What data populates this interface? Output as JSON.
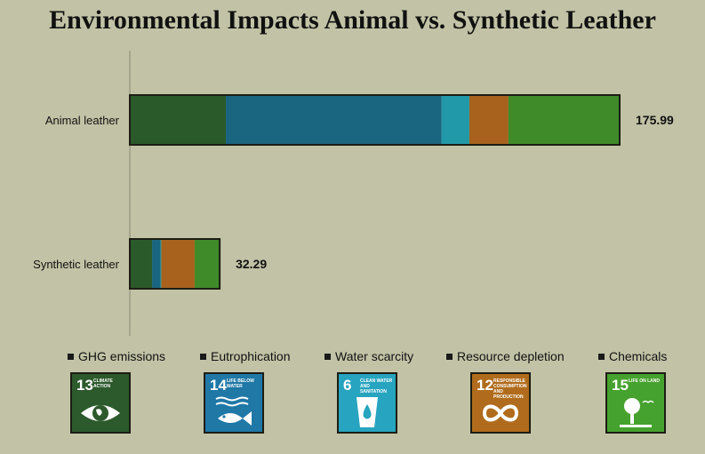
{
  "chart_data": {
    "type": "bar",
    "orientation": "horizontal",
    "stacked": true,
    "title": "Environmental Impacts Animal vs. Synthetic Leather",
    "categories": [
      "Animal leather",
      "Synthetic leather"
    ],
    "series": [
      {
        "name": "GHG emissions",
        "color": "#2b5a2a",
        "values": [
          34.5,
          8.0
        ]
      },
      {
        "name": "Eutrophication",
        "color": "#1a6680",
        "values": [
          77.5,
          3.0
        ]
      },
      {
        "name": "Water scarcity",
        "color": "#2299a8",
        "values": [
          10.0,
          0.3
        ]
      },
      {
        "name": "Resource depletion",
        "color": "#a8621d",
        "values": [
          14.0,
          12.0
        ]
      },
      {
        "name": "Chemicals",
        "color": "#3f8a29",
        "values": [
          39.99,
          8.99
        ]
      }
    ],
    "totals": [
      "175.99",
      "32.29"
    ],
    "xlim": [
      0,
      200
    ],
    "grid": false,
    "legend_position": "bottom"
  },
  "legend_swatch_color": "#1a1a1a",
  "sdg_icons": [
    {
      "number": "13",
      "label": "Climate action",
      "icon": "eye-globe-icon",
      "color": "#2d5a2c"
    },
    {
      "number": "14",
      "label": "Life below water",
      "icon": "fish-icon",
      "color": "#1f78a6"
    },
    {
      "number": "6",
      "label": "Clean water and sanitation",
      "icon": "water-drop-icon",
      "color": "#27a4bf"
    },
    {
      "number": "12",
      "label": "Responsible consumption and production",
      "icon": "infinity-icon",
      "color": "#b06c1c"
    },
    {
      "number": "15",
      "label": "Life on land",
      "icon": "tree-icon",
      "color": "#46a22e"
    }
  ]
}
